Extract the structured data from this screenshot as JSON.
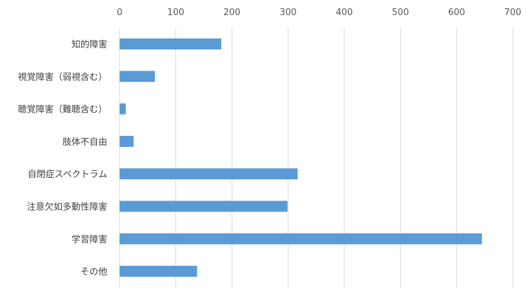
{
  "chart_data": {
    "type": "bar",
    "orientation": "horizontal",
    "categories": [
      "知的障害",
      "視覚障害（弱視含む）",
      "聴覚障害（難聴含む）",
      "肢体不自由",
      "自閉症スペクトラム",
      "注意欠如多動性障害",
      "学習障害",
      "その他"
    ],
    "values": [
      181,
      63,
      11,
      25,
      317,
      299,
      645,
      138
    ],
    "xlim": [
      0,
      700
    ],
    "xticks": [
      "0",
      "100",
      "200",
      "300",
      "400",
      "500",
      "600",
      "700"
    ],
    "xaxis_position": "top",
    "grid": true,
    "bar_color": "#5b9bd5"
  }
}
